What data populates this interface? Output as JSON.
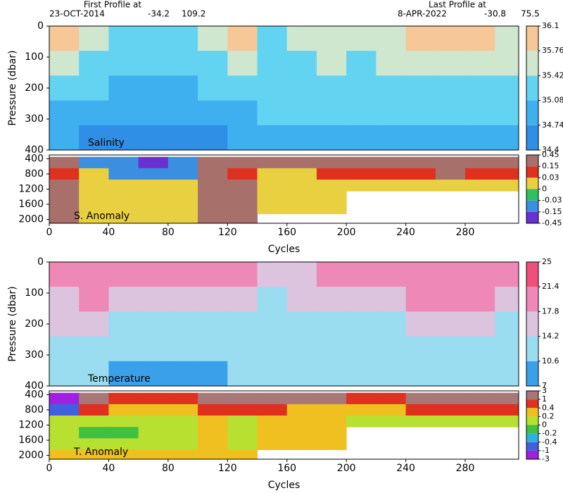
{
  "header": {
    "left_title": "First Profile at",
    "left_date": "23-OCT-2014",
    "left_lat": -34.2,
    "left_lon": 109.2,
    "right_title": "Last Profile at",
    "right_date": "8-APR-2022",
    "right_lat": -30.8,
    "right_lon": 75.5
  },
  "chart_data": [
    {
      "type": "heatmap",
      "label": "Salinity",
      "ylabel": "Pressure (dbar)",
      "x": [
        10,
        30,
        50,
        70,
        90,
        110,
        130,
        150,
        170,
        190,
        210,
        230,
        250,
        270,
        290,
        310
      ],
      "y": [
        40,
        120,
        200,
        280,
        360
      ],
      "z": [
        [
          35.8,
          35.7,
          35.3,
          35.3,
          35.4,
          35.5,
          35.8,
          35.4,
          35.5,
          35.6,
          35.6,
          35.7,
          35.8,
          35.9,
          35.8,
          35.7
        ],
        [
          35.6,
          35.4,
          35.2,
          35.1,
          35.2,
          35.3,
          35.5,
          35.3,
          35.4,
          35.5,
          35.4,
          35.5,
          35.6,
          35.7,
          35.6,
          35.5
        ],
        [
          35.3,
          35.1,
          35.0,
          35.0,
          35.0,
          35.1,
          35.2,
          35.2,
          35.3,
          35.3,
          35.2,
          35.3,
          35.3,
          35.4,
          35.4,
          35.3
        ],
        [
          35.0,
          34.9,
          34.9,
          34.8,
          34.9,
          34.9,
          35.0,
          35.1,
          35.1,
          35.1,
          35.1,
          35.1,
          35.1,
          35.1,
          35.1,
          35.1
        ],
        [
          34.8,
          34.7,
          34.7,
          34.7,
          34.7,
          34.7,
          34.8,
          34.9,
          34.9,
          34.9,
          34.9,
          34.9,
          34.9,
          34.9,
          34.9,
          34.9
        ]
      ],
      "xlim": [
        0,
        316
      ],
      "ylim": [
        0,
        400
      ],
      "yticks": [
        0,
        100,
        200,
        300,
        400
      ],
      "levels": [
        34.4,
        34.74,
        35.08,
        35.42,
        35.76,
        36.1
      ],
      "colors": [
        "#2f8fe6",
        "#3fb0ef",
        "#62d4f2",
        "#cfe6cf",
        "#f6c898"
      ]
    },
    {
      "type": "heatmap",
      "label": "S. Anomaly",
      "xlabel": "Cycles",
      "x": [
        10,
        30,
        50,
        70,
        90,
        110,
        130,
        150,
        170,
        190,
        210,
        230,
        250,
        270,
        290,
        310
      ],
      "y": [
        500,
        800,
        1100,
        1400,
        1700,
        2000
      ],
      "z": [
        [
          0.2,
          -0.05,
          -0.1,
          -0.2,
          -0.1,
          0.3,
          0.3,
          0.2,
          0.15,
          0.2,
          0.3,
          0.3,
          0.3,
          0.4,
          0.3,
          0.3
        ],
        [
          0.1,
          0.0,
          -0.05,
          -0.05,
          -0.05,
          0.2,
          0.1,
          0.0,
          0.0,
          0.05,
          0.1,
          0.1,
          0.1,
          0.15,
          0.1,
          0.1
        ],
        [
          0.3,
          0.0,
          0.0,
          0.0,
          0.0,
          0.3,
          0.3,
          0.0,
          0.0,
          0.0,
          0.0,
          0.0,
          0.0,
          0.0,
          0.0,
          0.0
        ],
        [
          0.3,
          0.01,
          0.0,
          0.0,
          0.0,
          0.3,
          0.3,
          0.02,
          0.02,
          0.02,
          null,
          null,
          null,
          null,
          null,
          null
        ],
        [
          0.3,
          0.0,
          0.0,
          0.0,
          0.0,
          0.3,
          0.3,
          0.0,
          0.0,
          0.0,
          null,
          null,
          null,
          null,
          null,
          null
        ],
        [
          0.3,
          0.0,
          0.0,
          0.0,
          0.0,
          0.3,
          0.3,
          null,
          null,
          null,
          null,
          null,
          null,
          null,
          null,
          null
        ]
      ],
      "xlim": [
        0,
        316
      ],
      "ylim": [
        300,
        2100
      ],
      "yticks": [
        400,
        800,
        1200,
        1600,
        2000
      ],
      "xticks": [
        0,
        40,
        80,
        120,
        160,
        200,
        240,
        280
      ],
      "levels": [
        -0.45,
        -0.15,
        -0.03,
        0,
        0.03,
        0.15,
        0.45
      ],
      "colors": [
        "#6a30d0",
        "#3a8fe0",
        "#30c060",
        "#e8d040",
        "#e03020",
        "#a8706a"
      ]
    },
    {
      "type": "heatmap",
      "label": "Temperature",
      "ylabel": "Pressure (dbar)",
      "x": [
        10,
        30,
        50,
        70,
        90,
        110,
        130,
        150,
        170,
        190,
        210,
        230,
        250,
        270,
        290,
        310
      ],
      "y": [
        40,
        120,
        200,
        280,
        360
      ],
      "z": [
        [
          20,
          20,
          19,
          18,
          19,
          18,
          19,
          15,
          17,
          18,
          19,
          20,
          21,
          21,
          20,
          20
        ],
        [
          17,
          18,
          15,
          15,
          16,
          16,
          17,
          14,
          15,
          16,
          16,
          17,
          18,
          19,
          18,
          17
        ],
        [
          15,
          15,
          13,
          13,
          14,
          13,
          14,
          13,
          13,
          13,
          13,
          14,
          15,
          16,
          15,
          14
        ],
        [
          13,
          13,
          12,
          11,
          12,
          12,
          12,
          12,
          12,
          12,
          12,
          12,
          12,
          13,
          13,
          12
        ],
        [
          12,
          11,
          10,
          10,
          10,
          10,
          11,
          11,
          11,
          11,
          11,
          11,
          11,
          11,
          11,
          11
        ]
      ],
      "xlim": [
        0,
        316
      ],
      "ylim": [
        0,
        400
      ],
      "yticks": [
        0,
        100,
        200,
        300,
        400
      ],
      "levels": [
        7,
        10.6,
        14.2,
        17.8,
        21.4,
        25
      ],
      "colors": [
        "#3aa0ea",
        "#9adcf0",
        "#dcc4de",
        "#ee88b6",
        "#f04f7c"
      ]
    },
    {
      "type": "heatmap",
      "label": "T. Anomaly",
      "xlabel": "Cycles",
      "x": [
        10,
        30,
        50,
        70,
        90,
        110,
        130,
        150,
        170,
        190,
        210,
        230,
        250,
        270,
        290,
        310
      ],
      "y": [
        500,
        800,
        1100,
        1400,
        1700,
        2000
      ],
      "z": [
        [
          -3,
          1,
          0.5,
          0.6,
          0.5,
          1,
          1,
          1,
          1,
          1,
          0.5,
          0.5,
          1,
          1.5,
          1.5,
          1
        ],
        [
          -1,
          0.4,
          0.3,
          0.3,
          0.3,
          0.5,
          0.5,
          0.5,
          0.3,
          0.3,
          0.3,
          0.3,
          0.4,
          0.5,
          0.5,
          0.4
        ],
        [
          0,
          0,
          0,
          0,
          0,
          0.2,
          0,
          0.3,
          0.3,
          0.3,
          0,
          0,
          0,
          0,
          0,
          0
        ],
        [
          0.1,
          -0.1,
          -0.1,
          0,
          0,
          0.3,
          0,
          0.3,
          0.3,
          0.2,
          null,
          null,
          null,
          null,
          null,
          null
        ],
        [
          0.1,
          0.1,
          0.1,
          0.1,
          0.1,
          0.3,
          0,
          0.2,
          0.2,
          0.2,
          null,
          null,
          null,
          null,
          null,
          null
        ],
        [
          0.3,
          0.3,
          0.3,
          0.3,
          0.3,
          0.3,
          0.3,
          null,
          null,
          null,
          null,
          null,
          null,
          null,
          null,
          null
        ]
      ],
      "xlim": [
        0,
        316
      ],
      "ylim": [
        300,
        2100
      ],
      "yticks": [
        400,
        800,
        1200,
        1600,
        2000
      ],
      "xticks": [
        0,
        40,
        80,
        120,
        160,
        200,
        240,
        280
      ],
      "levels": [
        -3,
        -1,
        -0.4,
        -0.2,
        0,
        0.2,
        0.4,
        1,
        3
      ],
      "colors": [
        "#a020e0",
        "#4060e0",
        "#30b0e0",
        "#40c040",
        "#b8e030",
        "#f0c020",
        "#e03020",
        "#a87878"
      ]
    }
  ]
}
